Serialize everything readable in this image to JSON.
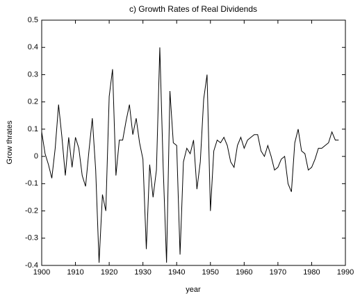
{
  "chart_data": {
    "type": "line",
    "title": "c) Growth Rates of Real Dividends",
    "xlabel": "year",
    "ylabel": "Grow thrates",
    "x": [
      1900,
      1901,
      1902,
      1903,
      1904,
      1905,
      1906,
      1907,
      1908,
      1909,
      1910,
      1911,
      1912,
      1913,
      1914,
      1915,
      1916,
      1917,
      1918,
      1919,
      1920,
      1921,
      1922,
      1923,
      1924,
      1925,
      1926,
      1927,
      1928,
      1929,
      1930,
      1931,
      1932,
      1933,
      1934,
      1935,
      1936,
      1937,
      1938,
      1939,
      1940,
      1941,
      1942,
      1943,
      1944,
      1945,
      1946,
      1947,
      1948,
      1949,
      1950,
      1951,
      1952,
      1953,
      1954,
      1955,
      1956,
      1957,
      1958,
      1959,
      1960,
      1961,
      1962,
      1963,
      1964,
      1965,
      1966,
      1967,
      1968,
      1969,
      1970,
      1971,
      1972,
      1973,
      1974,
      1975,
      1976,
      1977,
      1978,
      1979,
      1980,
      1981,
      1982,
      1983,
      1984,
      1985,
      1986,
      1987,
      1988
    ],
    "series": [
      {
        "color": "#000000",
        "values": [
          0.09,
          0.01,
          -0.03,
          -0.08,
          0.03,
          0.19,
          0.07,
          -0.07,
          0.07,
          -0.04,
          0.07,
          0.03,
          -0.07,
          -0.11,
          0.02,
          0.14,
          -0.05,
          -0.39,
          -0.14,
          -0.2,
          0.22,
          0.32,
          -0.07,
          0.06,
          0.06,
          0.13,
          0.19,
          0.08,
          0.14,
          0.05,
          -0.01,
          -0.34,
          -0.03,
          -0.15,
          -0.05,
          0.4,
          -0.04,
          -0.39,
          0.24,
          0.05,
          0.04,
          -0.36,
          -0.02,
          0.03,
          0.01,
          0.06,
          -0.12,
          -0.02,
          0.21,
          0.3,
          -0.2,
          0.02,
          0.06,
          0.05,
          0.07,
          0.04,
          -0.02,
          -0.04,
          0.04,
          0.07,
          0.03,
          0.06,
          0.07,
          0.08,
          0.08,
          0.02,
          0.0,
          0.04,
          0.0,
          -0.05,
          -0.04,
          -0.01,
          0.0,
          -0.1,
          -0.13,
          0.05,
          0.1,
          0.02,
          0.01,
          -0.05,
          -0.04,
          -0.01,
          0.03,
          0.03,
          0.04,
          0.05,
          0.09,
          0.06,
          0.06
        ]
      }
    ],
    "xlim": [
      1900,
      1990
    ],
    "xticks": [
      1900,
      1910,
      1920,
      1930,
      1940,
      1950,
      1960,
      1970,
      1980,
      1990
    ],
    "ylim": [
      -0.4,
      0.5
    ],
    "yticks": [
      -0.4,
      -0.3,
      -0.2,
      -0.1,
      0,
      0.1,
      0.2,
      0.3,
      0.4,
      0.5
    ]
  }
}
